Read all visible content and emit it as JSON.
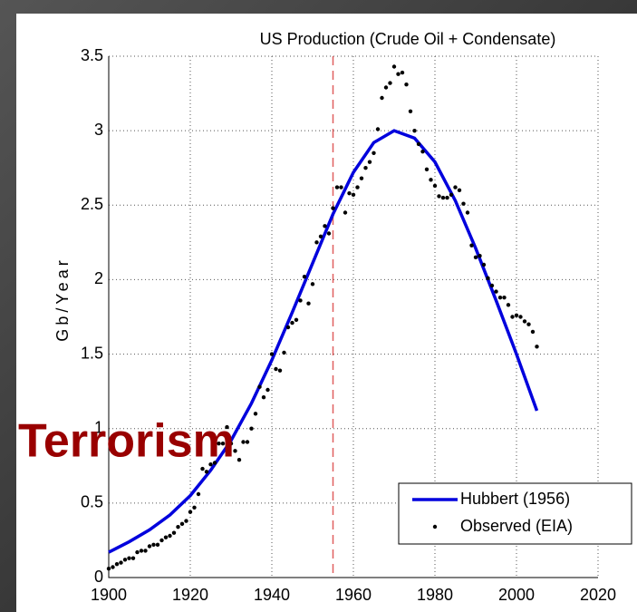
{
  "chart_data": {
    "type": "line",
    "title": "US Production (Crude Oil + Condensate)",
    "y_label": "Gb/Year",
    "annotation": "Terrorism",
    "vline": 1955,
    "xlim": [
      1900,
      2020
    ],
    "xticks": [
      1900,
      1920,
      1940,
      1960,
      1980,
      2000,
      2020
    ],
    "ylim": [
      0,
      3.5
    ],
    "yticks": [
      0,
      0.5,
      1,
      1.5,
      2,
      2.5,
      3,
      3.5
    ],
    "grid": true,
    "legend": "lower right",
    "series": [
      {
        "name": "Hubbert (1956)",
        "color": "#0000dd",
        "type": "line",
        "x": [
          1900,
          1905,
          1910,
          1915,
          1920,
          1925,
          1930,
          1935,
          1940,
          1945,
          1950,
          1955,
          1960,
          1965,
          1970,
          1975,
          1980,
          1985,
          1990,
          1995,
          2000,
          2005
        ],
        "values": [
          0.17,
          0.24,
          0.32,
          0.42,
          0.55,
          0.72,
          0.92,
          1.17,
          1.46,
          1.78,
          2.11,
          2.44,
          2.72,
          2.92,
          3.0,
          2.95,
          2.79,
          2.53,
          2.21,
          1.86,
          1.5,
          1.12
        ]
      },
      {
        "name": "Observed (EIA)",
        "color": "#000000",
        "type": "scatter",
        "x": [
          1900,
          1901,
          1902,
          1903,
          1904,
          1905,
          1906,
          1907,
          1908,
          1909,
          1910,
          1911,
          1912,
          1913,
          1914,
          1915,
          1916,
          1917,
          1918,
          1919,
          1920,
          1921,
          1922,
          1923,
          1924,
          1925,
          1926,
          1927,
          1928,
          1929,
          1930,
          1931,
          1932,
          1933,
          1934,
          1935,
          1936,
          1937,
          1938,
          1939,
          1940,
          1941,
          1942,
          1943,
          1944,
          1945,
          1946,
          1947,
          1948,
          1949,
          1950,
          1951,
          1952,
          1953,
          1954,
          1955,
          1956,
          1957,
          1958,
          1959,
          1960,
          1961,
          1962,
          1963,
          1964,
          1965,
          1966,
          1967,
          1968,
          1969,
          1970,
          1971,
          1972,
          1973,
          1974,
          1975,
          1976,
          1977,
          1978,
          1979,
          1980,
          1981,
          1982,
          1983,
          1984,
          1985,
          1986,
          1987,
          1988,
          1989,
          1990,
          1991,
          1992,
          1993,
          1994,
          1995,
          1996,
          1997,
          1998,
          1999,
          2000,
          2001,
          2002,
          2003,
          2004,
          2005
        ],
        "values": [
          0.06,
          0.07,
          0.09,
          0.1,
          0.12,
          0.13,
          0.13,
          0.17,
          0.18,
          0.18,
          0.21,
          0.22,
          0.22,
          0.25,
          0.27,
          0.28,
          0.3,
          0.34,
          0.36,
          0.38,
          0.44,
          0.47,
          0.56,
          0.73,
          0.71,
          0.76,
          0.77,
          0.9,
          0.9,
          1.01,
          0.9,
          0.85,
          0.79,
          0.91,
          0.91,
          1.0,
          1.1,
          1.28,
          1.21,
          1.26,
          1.5,
          1.4,
          1.39,
          1.51,
          1.68,
          1.71,
          1.73,
          1.86,
          2.02,
          1.84,
          1.97,
          2.25,
          2.29,
          2.36,
          2.31,
          2.48,
          2.62,
          2.62,
          2.45,
          2.58,
          2.57,
          2.62,
          2.68,
          2.75,
          2.79,
          2.85,
          3.01,
          3.22,
          3.29,
          3.32,
          3.43,
          3.38,
          3.39,
          3.31,
          3.13,
          3.0,
          2.91,
          2.86,
          2.74,
          2.67,
          2.63,
          2.56,
          2.55,
          2.55,
          2.57,
          2.62,
          2.6,
          2.51,
          2.45,
          2.23,
          2.15,
          2.16,
          2.1,
          2.01,
          1.96,
          1.92,
          1.88,
          1.88,
          1.83,
          1.75,
          1.76,
          1.75,
          1.72,
          1.7,
          1.65,
          1.55
        ]
      }
    ]
  }
}
